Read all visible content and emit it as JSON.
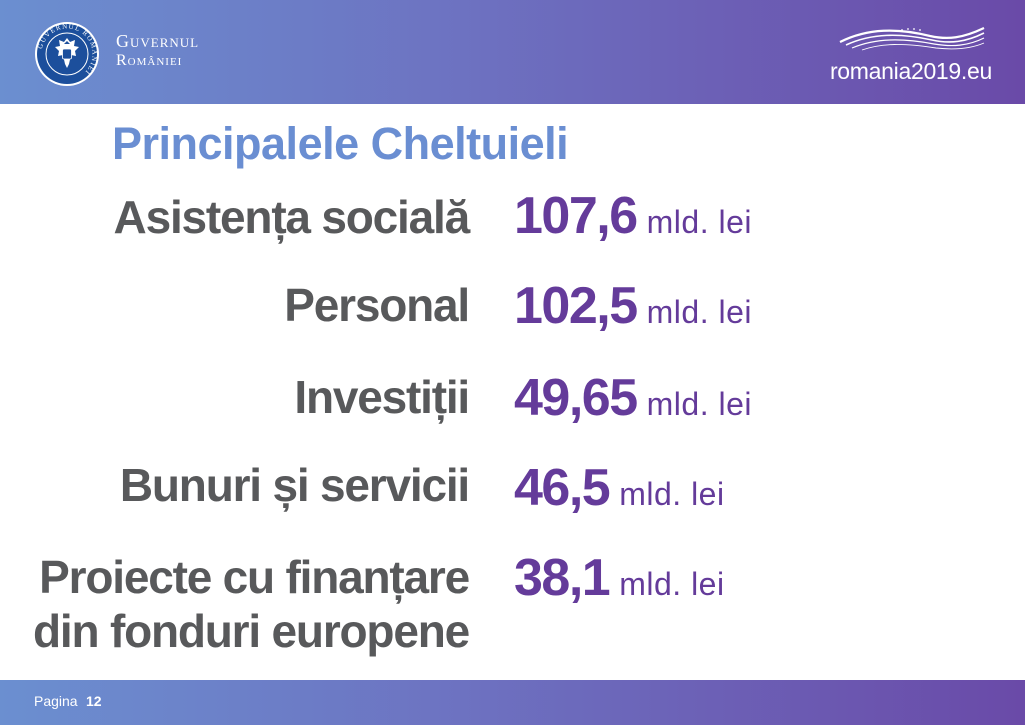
{
  "header": {
    "gov_line1": "Guvernul",
    "gov_line2": "României",
    "seal_text": "GUVERNUL ROMÂNIEI",
    "site": "romania2019.eu",
    "bg_start": "#6b8fd0",
    "bg_end": "#6a4aa8"
  },
  "title": "Principalele Cheltuieli",
  "expenses": [
    {
      "label": "Asistența socială",
      "value": "107,6",
      "unit": "mld. lei"
    },
    {
      "label": "Personal",
      "value": "102,5",
      "unit": "mld. lei"
    },
    {
      "label": "Investiții",
      "value": "49,65",
      "unit": "mld. lei"
    },
    {
      "label": "Bunuri și servicii",
      "value": "46,5",
      "unit": "mld. lei"
    },
    {
      "label_line1": "Proiecte cu finanțare",
      "label_line2": "din fonduri europene",
      "value": "38,1",
      "unit": "mld. lei"
    }
  ],
  "footer": {
    "page_label": "Pagina",
    "page_number": "12"
  },
  "colors": {
    "title": "#6a8ed2",
    "label": "#58595b",
    "value": "#643b9a"
  }
}
